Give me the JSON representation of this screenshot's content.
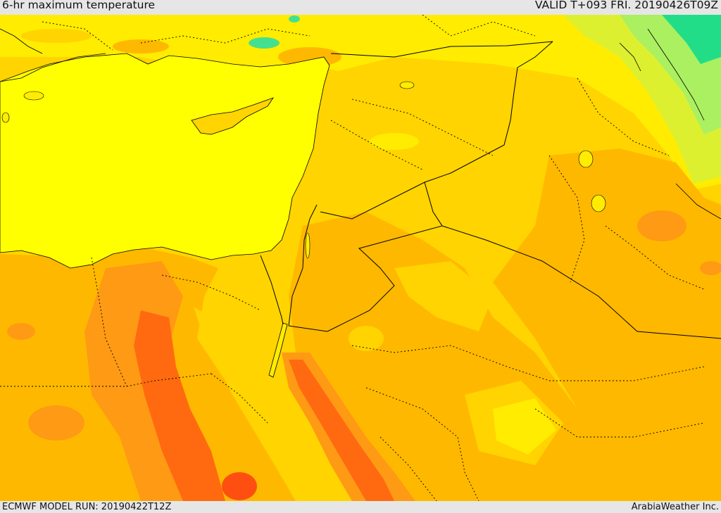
{
  "header": {
    "title": "6-hr maximum temperature",
    "valid_time": "VALID T+093 FRI. 20190426T09Z"
  },
  "footer": {
    "model_run": "ECMWF MODEL RUN: 20190422T12Z",
    "credit": "ArabiaWeather Inc."
  },
  "map": {
    "colors": {
      "sea": "#ffff00",
      "cool_green": "#22dd88",
      "light_green": "#aaf060",
      "yellow_green": "#ddf030",
      "yellow": "#ffec00",
      "gold": "#ffd400",
      "light_orange": "#ffb800",
      "orange": "#ff9a14",
      "dark_orange": "#ff6a10",
      "red_orange": "#ff4f10",
      "borders": "#000000"
    }
  }
}
